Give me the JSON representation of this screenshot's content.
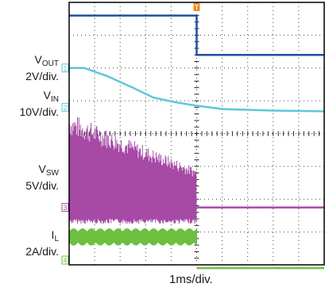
{
  "chart_data": {
    "type": "line",
    "title": "",
    "xlabel": "1ms/div.",
    "grid": true,
    "x_divisions": 10,
    "y_divisions": 8,
    "time_per_div_ms": 1,
    "trigger_time_ms": 5.0,
    "trigger_marker": "T",
    "colors": {
      "ch_top": "#1f4fa0",
      "vout": "#5cc8d8",
      "vsw": "#a64aa6",
      "il": "#6cc040",
      "trigger": "#f08a24"
    },
    "channels": [
      {
        "id": "ch-top",
        "main": "",
        "sub": "",
        "scale": "",
        "marker": "",
        "ground_div": 7.6,
        "points": [
          [
            0,
            7.6
          ],
          [
            5.0,
            7.6
          ],
          [
            5.0,
            6.4
          ],
          [
            10,
            6.4
          ]
        ]
      },
      {
        "id": "vout",
        "main": "V",
        "sub": "OUT",
        "scale": "2V/div.",
        "marker": "1",
        "ground_div": 6.0,
        "points": [
          [
            0,
            6.0
          ],
          [
            0.6,
            6.0
          ],
          [
            1.5,
            5.75
          ],
          [
            2.5,
            5.4
          ],
          [
            3.3,
            5.1
          ],
          [
            4.2,
            4.95
          ],
          [
            5.0,
            4.85
          ],
          [
            6.0,
            4.75
          ],
          [
            8.0,
            4.7
          ],
          [
            10,
            4.68
          ]
        ]
      },
      {
        "id": "vin",
        "main": "V",
        "sub": "IN",
        "scale": "10V/div.",
        "marker": "2",
        "ground_div": 4.8,
        "points": []
      },
      {
        "id": "vsw",
        "main": "V",
        "sub": "SW",
        "scale": "5V/div.",
        "marker": "3",
        "ground_div": 1.75,
        "burst_end_ms": 5.0,
        "amplitude_start_div": 2.9,
        "amplitude_end_div": 1.2,
        "level_after_div": 1.75,
        "points": []
      },
      {
        "id": "il",
        "main": "I",
        "sub": "L",
        "scale": "2A/div.",
        "marker": "4",
        "ground_div": -0.2,
        "burst_end_ms": 5.0,
        "level_during_div": 0.85,
        "ripple_div": 0.25,
        "level_after_div": -0.1,
        "points": []
      }
    ]
  }
}
